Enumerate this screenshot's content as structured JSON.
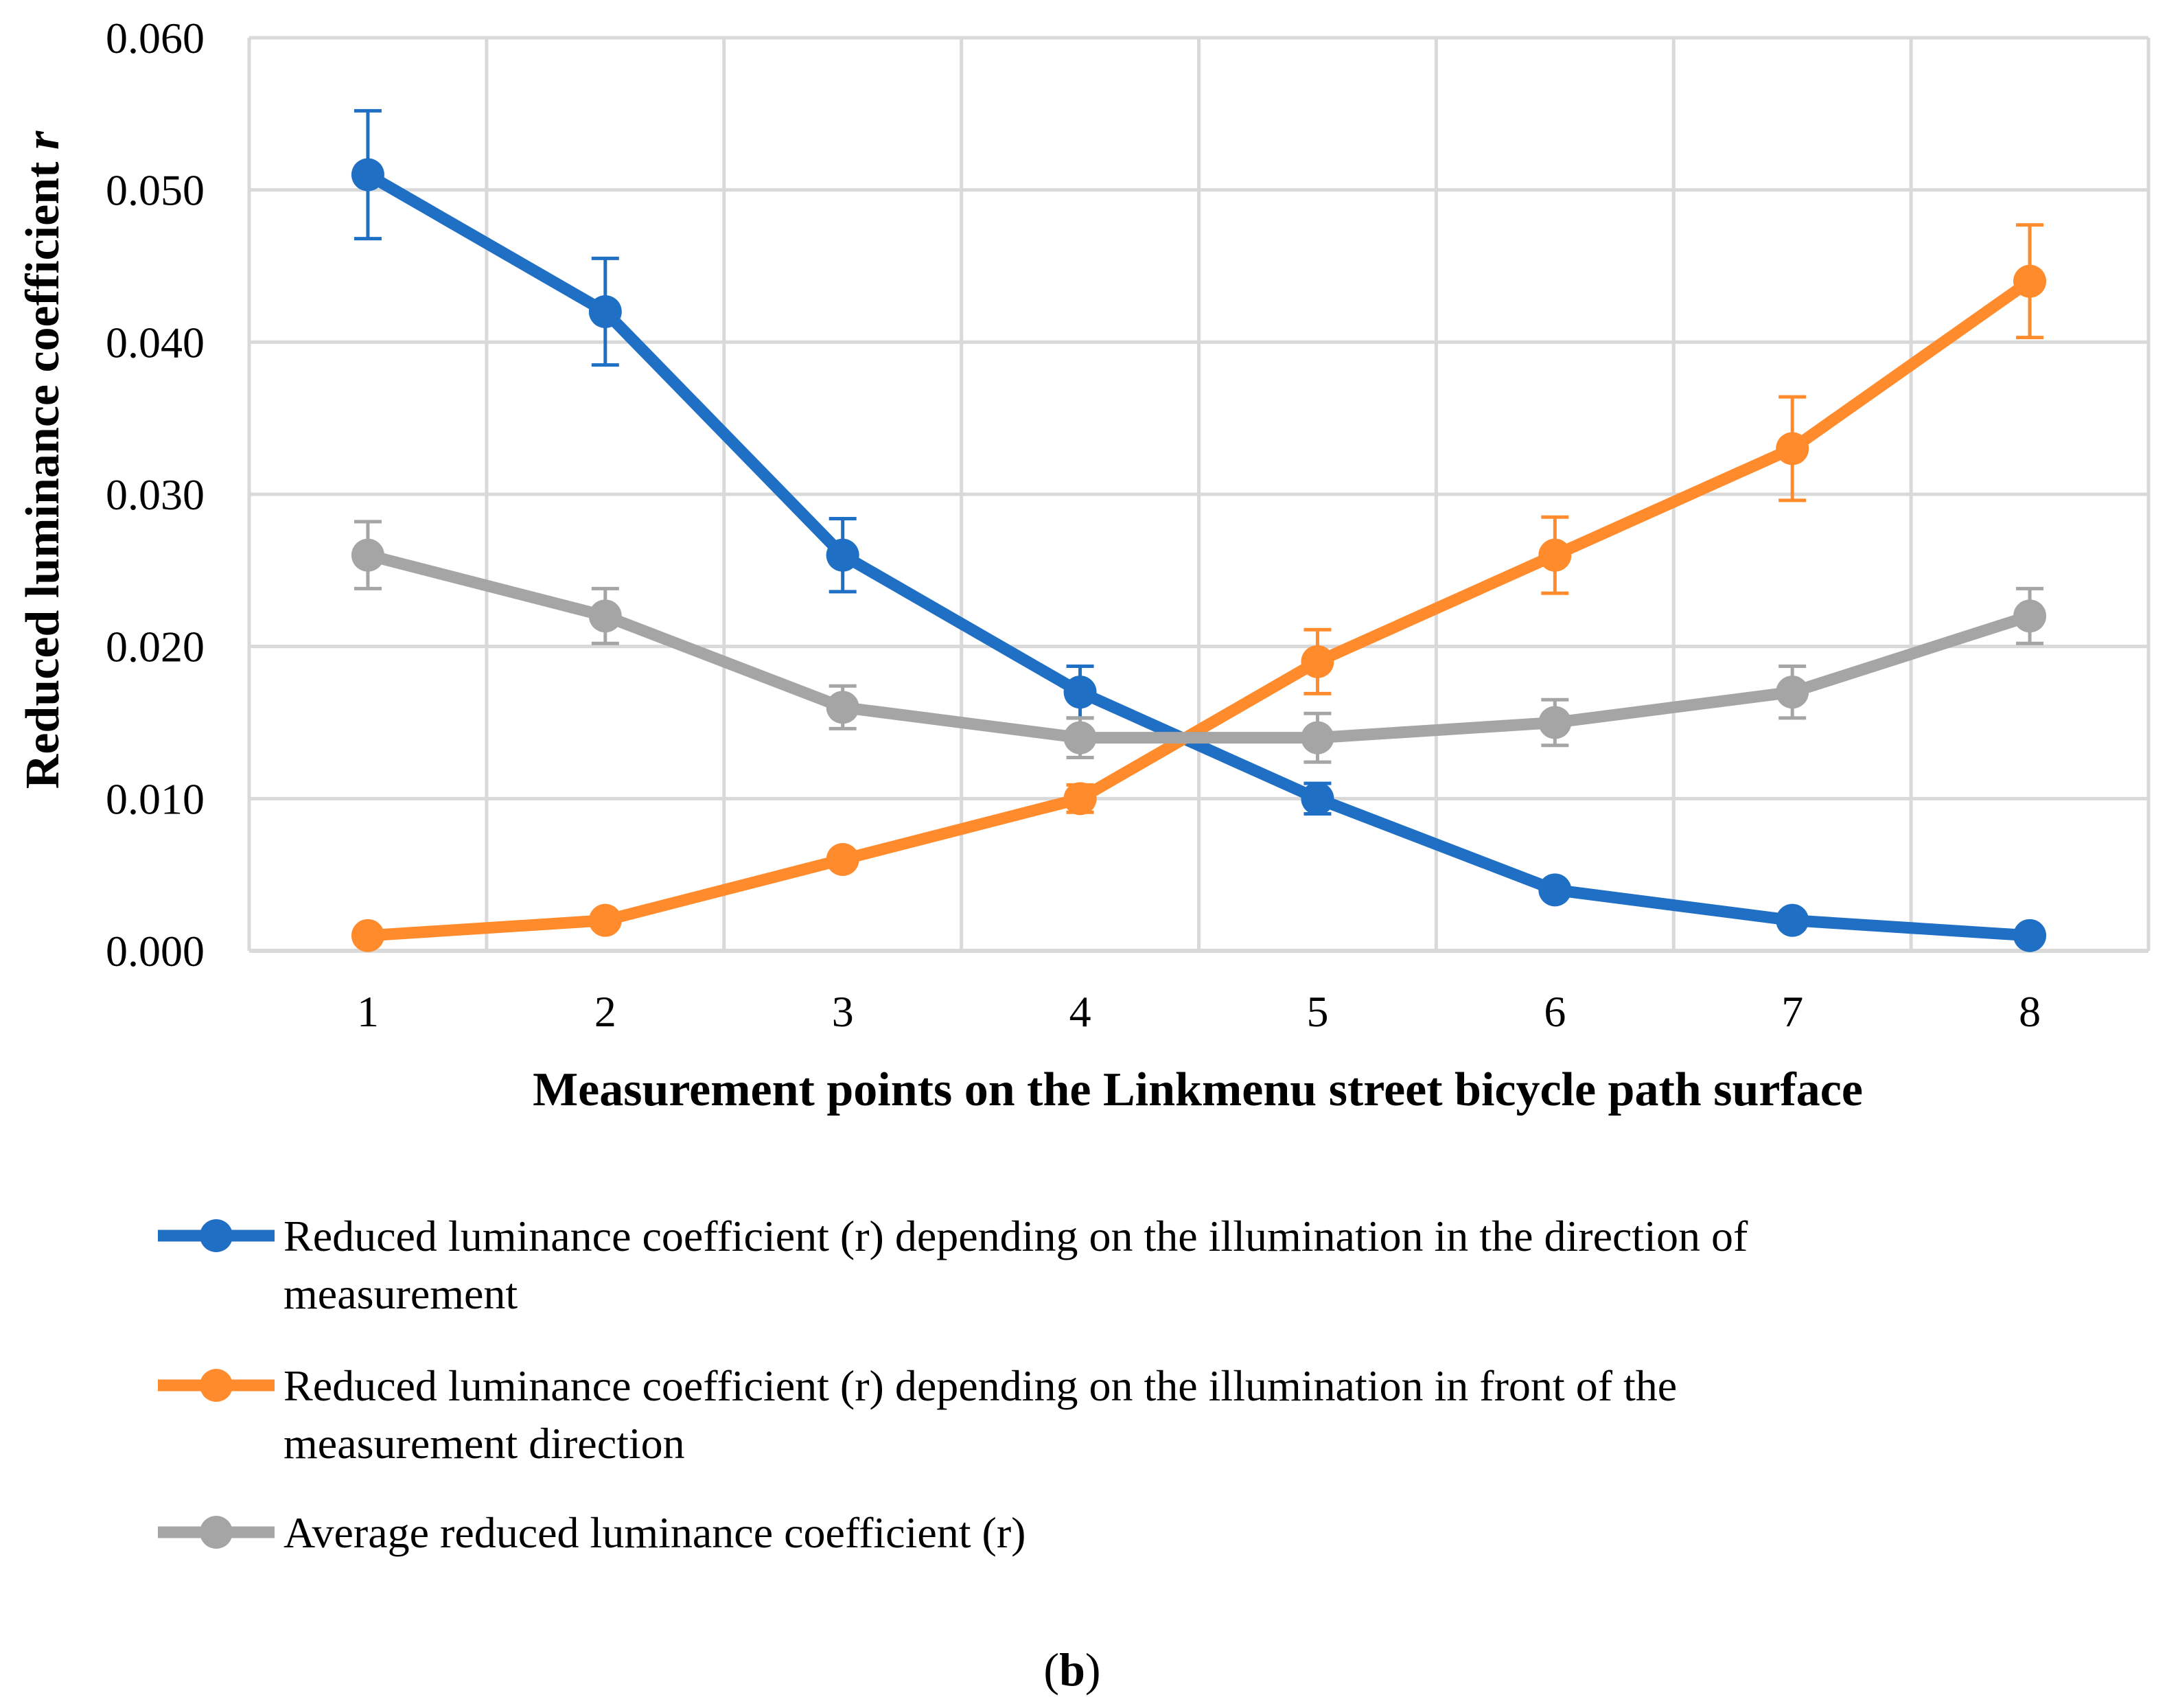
{
  "chart_data": {
    "type": "line",
    "title": "",
    "xlabel": "Measurement points on the Linkmenu street bicycle path surface",
    "ylabel": "Reduced luminance coefficient ",
    "ylabel_symbol": "r",
    "ylim": [
      0.0,
      0.06
    ],
    "y_ticks": [
      "0.000",
      "0.010",
      "0.020",
      "0.030",
      "0.040",
      "0.050",
      "0.060"
    ],
    "x": [
      "1",
      "2",
      "3",
      "4",
      "5",
      "6",
      "7",
      "8"
    ],
    "grid": true,
    "legend_position": "bottom",
    "series": [
      {
        "name": "Reduced luminance coefficient (r) depending on the illumination in the direction of measurement",
        "legend_lines": [
          "Reduced luminance coefficient (r) depending on the illumination in the direction of",
          "measurement"
        ],
        "color": "#1f6fc5",
        "values": [
          0.051,
          0.042,
          0.026,
          0.017,
          0.01,
          0.004,
          0.002,
          0.001
        ],
        "errors": [
          0.0042,
          0.0035,
          0.0024,
          0.0017,
          0.001,
          0.0,
          0.0,
          0.0
        ]
      },
      {
        "name": "Reduced luminance coefficient (r) depending on the illumination in front of the measurement direction",
        "legend_lines": [
          "Reduced luminance coefficient (r) depending on the illumination in front of the",
          "measurement direction"
        ],
        "color": "#ff8b2c",
        "values": [
          0.001,
          0.002,
          0.006,
          0.01,
          0.019,
          0.026,
          0.033,
          0.044
        ],
        "errors": [
          0.0,
          0.0,
          0.0,
          0.0009,
          0.0021,
          0.0025,
          0.0034,
          0.0037
        ]
      },
      {
        "name": "Average reduced luminance coefficient (r)",
        "legend_lines": [
          "Average reduced luminance coefficient (r)"
        ],
        "color": "#a5a5a5",
        "values": [
          0.026,
          0.022,
          0.016,
          0.014,
          0.014,
          0.015,
          0.017,
          0.022
        ],
        "errors": [
          0.0022,
          0.0018,
          0.0014,
          0.0013,
          0.0016,
          0.0015,
          0.0017,
          0.0018
        ]
      }
    ]
  },
  "caption": {
    "open": "(",
    "letter": "b",
    "close": ")"
  }
}
